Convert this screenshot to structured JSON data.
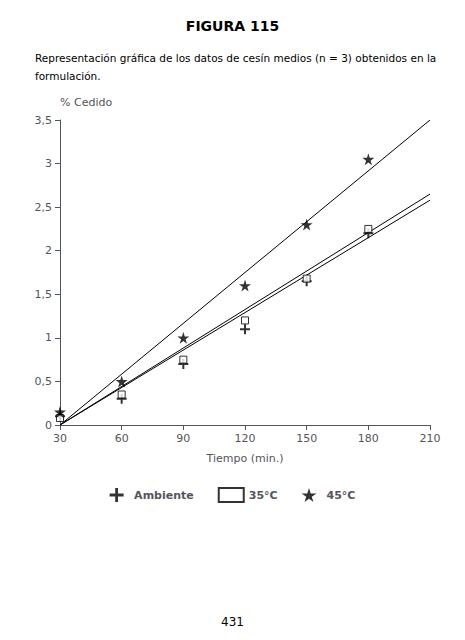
{
  "chart_data": {
    "type": "scatter",
    "title": "FIGURA 115",
    "subtitle": [
      "Representación gráfica de los datos de cesín medios (n = 3) obtenidos en la",
      "formulación."
    ],
    "annotations": [
      "431"
    ],
    "xlabel": "Tiempo (min.)",
    "ylabel": "% Cedido",
    "xlim": [
      30,
      210
    ],
    "ylim": [
      0,
      3.5
    ],
    "xticks": [
      30,
      60,
      90,
      120,
      150,
      180,
      210
    ],
    "yticks": [
      0,
      {
        "value": 0.5,
        "label": "0,5"
      },
      1,
      {
        "value": 1.5,
        "label": "1,5"
      },
      2,
      {
        "value": 2.5,
        "label": "2,5"
      },
      3,
      {
        "value": 3.5,
        "label": "3,5"
      }
    ],
    "grid": false,
    "legend": "bottom",
    "series": [
      {
        "type": "line",
        "color": "#000000",
        "line_style": "solid",
        "x": [
          30,
          210
        ],
        "values": [
          0.0,
          3.5
        ]
      },
      {
        "type": "line",
        "color": "#000000",
        "line_style": "solid",
        "x": [
          30,
          210
        ],
        "values": [
          0.0,
          2.58
        ]
      },
      {
        "type": "line",
        "color": "#000000",
        "line_style": "solid",
        "x": [
          30,
          210
        ],
        "values": [
          0.0,
          2.65
        ]
      },
      {
        "name": "Ambiente",
        "type": "scatter",
        "marker": "plus",
        "color": "#000000",
        "x": [
          30,
          60,
          90,
          120,
          150,
          180
        ],
        "values": [
          0.1,
          0.3,
          0.7,
          1.1,
          1.65,
          2.2
        ]
      },
      {
        "name": "35°C",
        "type": "scatter",
        "marker": "square",
        "color": "#000000",
        "x": [
          30,
          60,
          90,
          120,
          150,
          180
        ],
        "values": [
          0.08,
          0.35,
          0.75,
          1.2,
          1.68,
          2.25
        ]
      },
      {
        "name": "45°C",
        "type": "scatter",
        "marker": "star",
        "color": "#000000",
        "x": [
          30,
          60,
          90,
          120,
          150,
          180
        ],
        "values": [
          0.15,
          0.5,
          1.0,
          1.6,
          2.3,
          3.05
        ]
      }
    ]
  }
}
